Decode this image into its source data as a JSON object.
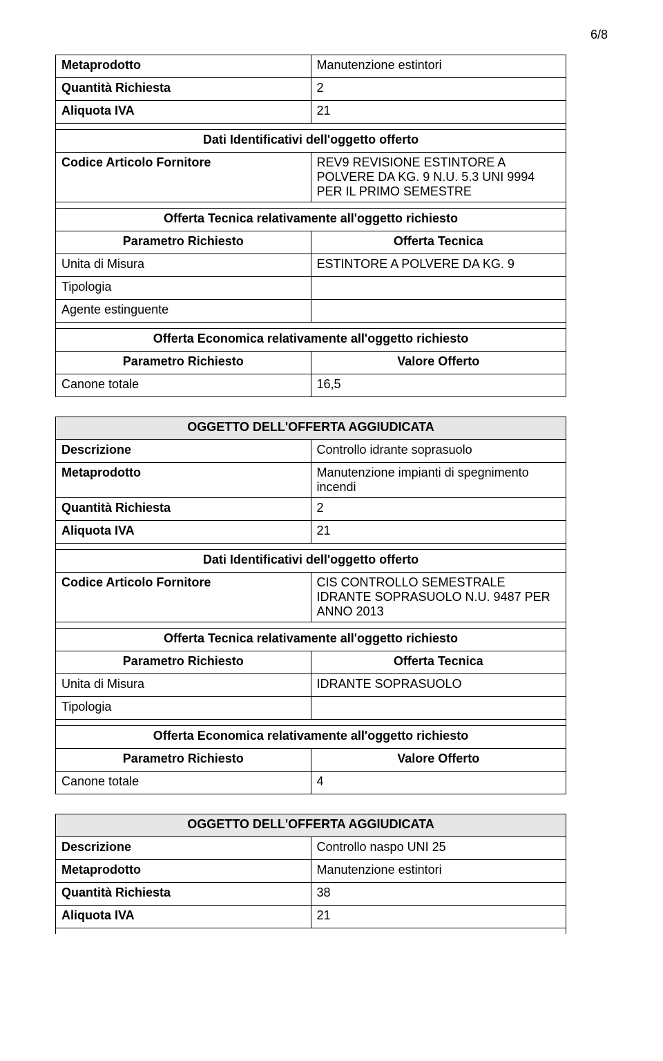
{
  "page_number": "6/8",
  "table1": {
    "row1_left": "Metaprodotto",
    "row1_right": "Manutenzione estintori",
    "row2_left": "Quantità  Richiesta",
    "row2_right": "2",
    "row3_left": "Aliquota IVA",
    "row3_right": "21",
    "dati_ident_header": "Dati Identificativi dell'oggetto offerto",
    "codice_left": "Codice Articolo Fornitore",
    "codice_right": "REV9 REVISIONE ESTINTORE A POLVERE DA KG. 9 N.U. 5.3 UNI 9994 PER IL PRIMO SEMESTRE",
    "offerta_tecnica_header": "Offerta Tecnica relativamente all'oggetto richiesto",
    "param_rich_left": "Parametro Richiesto",
    "offerta_tecnica_right": "Offerta Tecnica",
    "unita_left": "Unita di Misura",
    "unita_right": "ESTINTORE A POLVERE DA KG. 9",
    "tipologia_left": "Tipologia",
    "tipologia_right": "",
    "agente_left": "Agente estinguente",
    "agente_right": "",
    "offerta_econ_header": "Offerta Economica relativamente all'oggetto richiesto",
    "param_rich2_left": "Parametro Richiesto",
    "valore_right": "Valore Offerto",
    "canone_left": "Canone totale",
    "canone_right": "16,5"
  },
  "table2": {
    "oggetto_header": "OGGETTO DELL'OFFERTA AGGIUDICATA",
    "desc_left": "Descrizione",
    "desc_right": "Controllo idrante soprasuolo",
    "meta_left": "Metaprodotto",
    "meta_right": "Manutenzione impianti di spegnimento incendi",
    "qty_left": "Quantità  Richiesta",
    "qty_right": "2",
    "iva_left": "Aliquota IVA",
    "iva_right": "21",
    "dati_ident_header": "Dati Identificativi dell'oggetto offerto",
    "codice_left": "Codice Articolo Fornitore",
    "codice_right": "CIS CONTROLLO SEMESTRALE IDRANTE SOPRASUOLO N.U. 9487 PER ANNO 2013",
    "offerta_tecnica_header": "Offerta Tecnica relativamente all'oggetto richiesto",
    "param_rich_left": "Parametro Richiesto",
    "offerta_tecnica_right": "Offerta Tecnica",
    "unita_left": "Unita di Misura",
    "unita_right": "IDRANTE SOPRASUOLO",
    "tipologia_left": "Tipologia",
    "tipologia_right": "",
    "offerta_econ_header": "Offerta Economica relativamente all'oggetto richiesto",
    "param_rich2_left": "Parametro Richiesto",
    "valore_right": "Valore Offerto",
    "canone_left": "Canone totale",
    "canone_right": "4"
  },
  "table3": {
    "oggetto_header": "OGGETTO DELL'OFFERTA AGGIUDICATA",
    "desc_left": "Descrizione",
    "desc_right": "Controllo naspo UNI 25",
    "meta_left": "Metaprodotto",
    "meta_right": "Manutenzione estintori",
    "qty_left": "Quantità  Richiesta",
    "qty_right": "38",
    "iva_left": "Aliquota IVA",
    "iva_right": "21"
  }
}
